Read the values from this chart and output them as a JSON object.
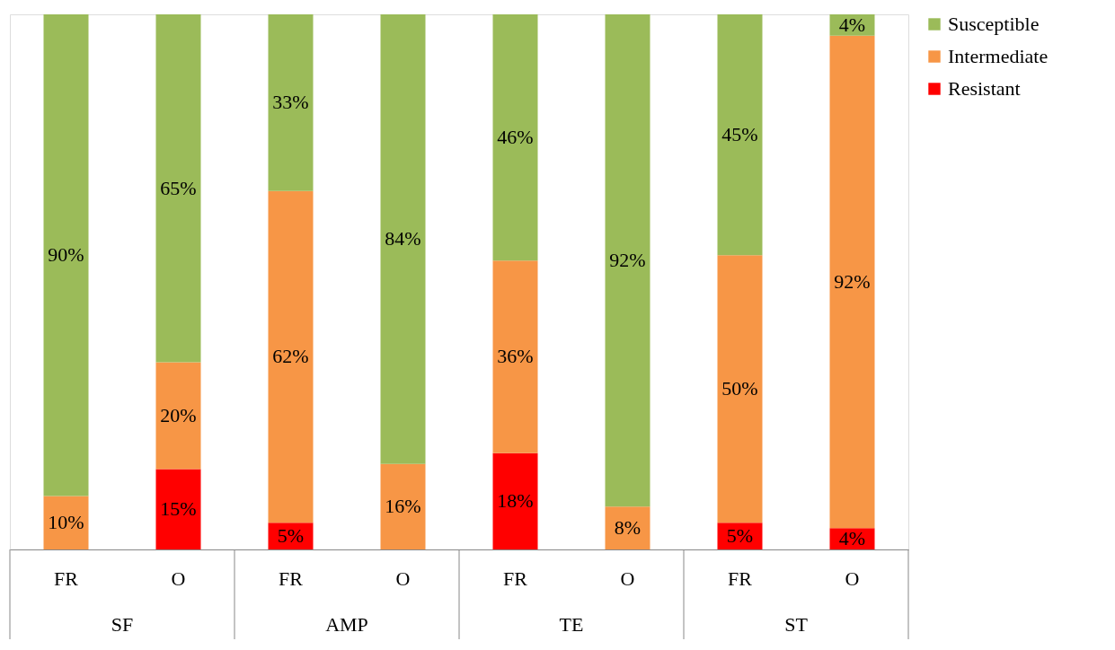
{
  "chart_data": {
    "type": "bar",
    "stacked": true,
    "legend": "right",
    "categories": [
      "FR",
      "O",
      "FR",
      "O",
      "FR",
      "O",
      "FR",
      "O"
    ],
    "annotations": [
      "SF",
      "AMP",
      "TE",
      "ST"
    ],
    "series": [
      {
        "name": "Resistant",
        "color": "#ff0000",
        "values": [
          null,
          15,
          5,
          null,
          18,
          null,
          5,
          4
        ],
        "value_labels": [
          null,
          "15%",
          "5%",
          null,
          "18%",
          null,
          "5%",
          "4%"
        ]
      },
      {
        "name": "Intermediate",
        "color": "#f79646",
        "values": [
          10,
          20,
          62,
          16,
          36,
          8,
          50,
          92
        ],
        "value_labels": [
          "10%",
          "20%",
          "62%",
          "16%",
          "36%",
          "8%",
          "50%",
          "92%"
        ]
      },
      {
        "name": "Susceptible",
        "color": "#9bbb59",
        "values": [
          90,
          65,
          33,
          84,
          46,
          92,
          45,
          4
        ],
        "value_labels": [
          "90%",
          "65%",
          "33%",
          "84%",
          "46%",
          "92%",
          "45%",
          "4%"
        ]
      }
    ]
  }
}
